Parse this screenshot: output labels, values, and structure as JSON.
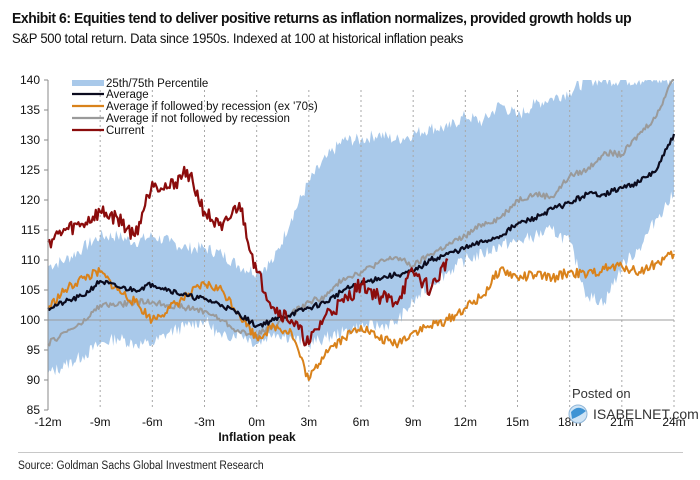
{
  "header": {
    "title": "Exhibit 6: Equities tend to deliver positive returns as inflation normalizes, provided growth holds up",
    "subtitle": "S&P 500 total return. Data since 1950s. Indexed at 100 at historical inflation peaks"
  },
  "footer": {
    "source": "Source: Goldman Sachs Global Investment Research"
  },
  "watermark": {
    "line1": "Posted on",
    "line2": "ISABELNET.com"
  },
  "chart_data": {
    "type": "line",
    "title": "Exhibit 6: Equities tend to deliver positive returns as inflation normalizes, provided growth holds up",
    "subtitle": "S&P 500 total return. Data since 1950s. Indexed at 100 at historical inflation peaks",
    "xlabel": "Inflation peak",
    "ylabel": "",
    "x_unit": "months relative to inflation peak",
    "xlim": [
      -12,
      24
    ],
    "ylim": [
      85,
      140
    ],
    "x_ticks": [
      -12,
      -9,
      -6,
      -3,
      0,
      3,
      6,
      9,
      12,
      15,
      18,
      21,
      24
    ],
    "x_tick_labels": [
      "-12m",
      "-9m",
      "-6m",
      "-3m",
      "0m",
      "3m",
      "6m",
      "9m",
      "12m",
      "15m",
      "18m",
      "21m",
      "24m"
    ],
    "y_ticks": [
      85,
      90,
      95,
      100,
      105,
      110,
      115,
      120,
      125,
      130,
      135,
      140
    ],
    "y_tick_labels": [
      "85",
      "90",
      "95",
      "100",
      "105",
      "110",
      "115",
      "120",
      "125",
      "130",
      "135",
      "140"
    ],
    "grid": "vertical dotted lines at x ticks",
    "reference_line": 100,
    "legend_position": "top-left",
    "x": [
      -12,
      -11,
      -10,
      -9,
      -8,
      -7,
      -6,
      -5,
      -4,
      -3,
      -2,
      -1,
      0,
      1,
      2,
      3,
      4,
      5,
      6,
      7,
      8,
      9,
      10,
      11,
      12,
      13,
      14,
      15,
      16,
      17,
      18,
      19,
      20,
      21,
      22,
      23,
      24
    ],
    "band": {
      "name": "25th/75th Percentile",
      "color": "#a9c9ea",
      "lower": [
        91,
        92.5,
        94,
        96,
        97,
        96,
        96,
        98,
        99,
        100,
        97,
        98,
        96,
        98,
        97,
        96,
        97,
        98,
        99,
        99,
        99.5,
        103,
        106,
        108,
        110,
        111,
        112.5,
        113,
        114,
        115,
        113,
        104,
        103,
        109,
        112,
        117,
        121
      ],
      "upper": [
        109,
        110,
        112,
        114,
        114,
        113,
        114,
        113,
        112,
        112,
        111,
        109,
        108,
        110,
        117,
        123,
        127,
        130,
        130,
        131,
        130,
        131,
        132,
        132,
        134,
        133,
        136,
        134,
        136,
        137,
        138,
        140,
        140,
        140,
        140,
        140,
        140
      ]
    },
    "series": [
      {
        "name": "Average",
        "color": "#0b0b1e",
        "values": [
          102,
          103,
          104,
          106.5,
          105.5,
          105,
          106,
          105,
          104,
          103.5,
          102.5,
          101,
          99,
          100,
          101,
          102,
          103,
          105,
          106,
          107,
          107.5,
          108,
          110,
          111,
          112,
          113,
          114,
          116,
          117,
          118.5,
          119.5,
          121,
          121,
          122,
          123,
          125,
          131
        ]
      },
      {
        "name": "Average if followed by recession (ex '70s)",
        "color": "#d9821b",
        "values": [
          102,
          105,
          107,
          108,
          105,
          103,
          100,
          102,
          104,
          106,
          105,
          101,
          97,
          99,
          98,
          90,
          95,
          97,
          99,
          97,
          96,
          98,
          99,
          100,
          102,
          104,
          108.5,
          107,
          107.5,
          107,
          108,
          107.5,
          108.5,
          109,
          108,
          109.5,
          111
        ]
      },
      {
        "name": "Average if not followed by recession",
        "color": "#9a9a9a",
        "values": [
          96,
          98,
          99.5,
          102.5,
          102.5,
          103,
          103,
          102.5,
          102,
          101.5,
          100,
          98,
          97.5,
          99,
          101,
          103,
          104,
          107,
          108,
          109.5,
          110.5,
          109,
          111,
          112.5,
          114,
          116,
          117,
          120,
          121,
          120.5,
          124,
          125,
          128,
          127.5,
          131,
          134,
          141
        ]
      },
      {
        "name": "Current",
        "color": "#8b0c0c",
        "values": [
          113,
          115,
          116,
          118,
          117,
          114,
          123,
          122,
          125,
          118,
          115,
          119.5,
          108,
          102,
          100,
          96,
          101,
          103,
          106,
          104,
          103,
          108,
          105,
          110
        ]
      }
    ]
  }
}
